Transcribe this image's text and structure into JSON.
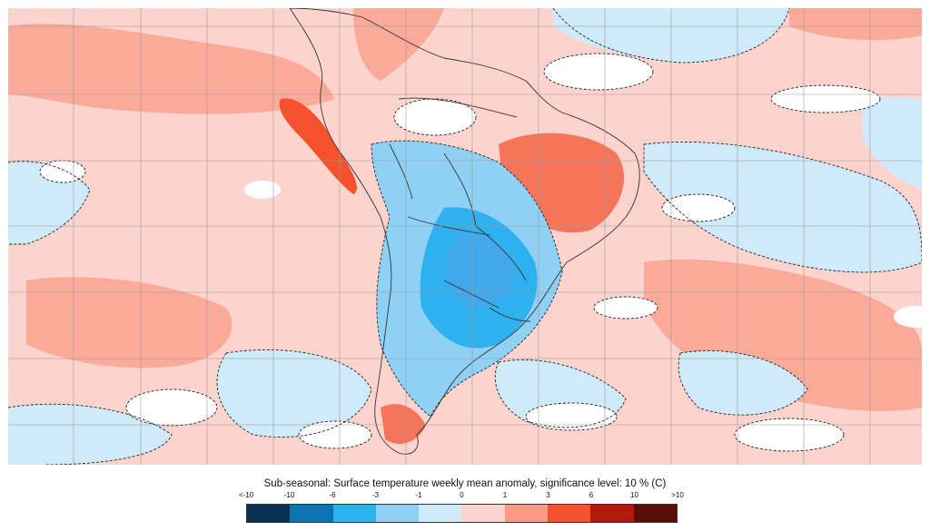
{
  "caption": "Sub-seasonal: Surface temperature weekly mean anomaly, significance level: 10 % (C)",
  "legend": {
    "tick_labels": [
      "<-10",
      "-10",
      "-6",
      "-3",
      "-1",
      "0",
      "1",
      "3",
      "6",
      "10",
      ">10"
    ],
    "colors": [
      "#08304f",
      "#0f72b3",
      "#2fb0ef",
      "#8fd0f5",
      "#cfeafb",
      "#fdd3cd",
      "#fc9a88",
      "#f4522d",
      "#b01a0a",
      "#5a0e06"
    ]
  },
  "map": {
    "background_color": "#fdd3cd",
    "significance_contour": "dashed"
  }
}
